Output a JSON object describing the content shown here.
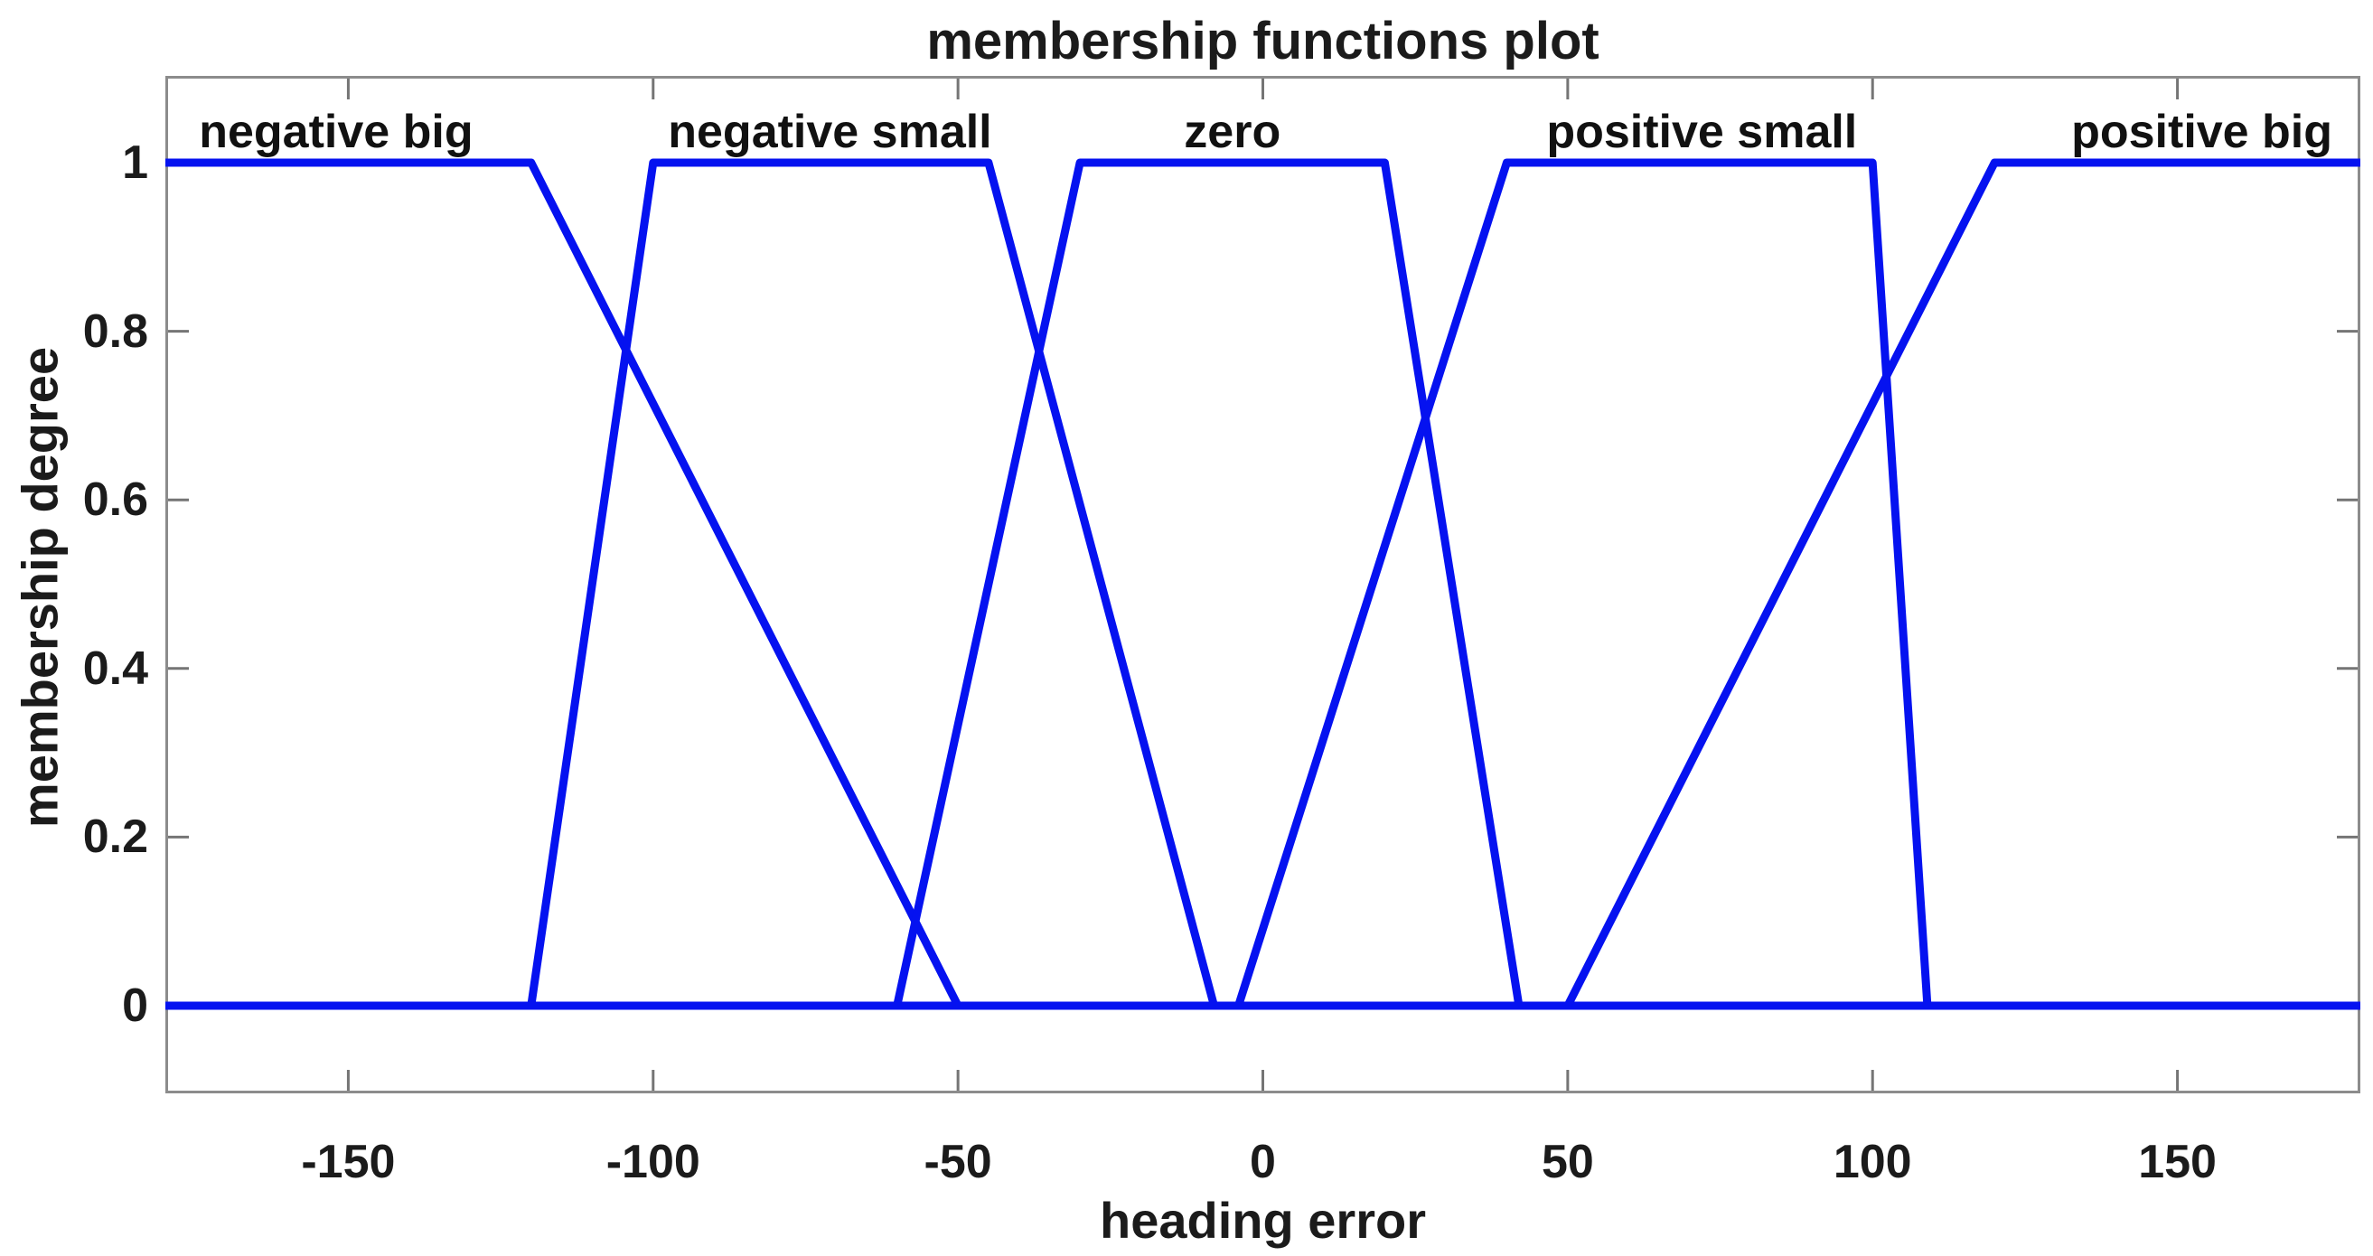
{
  "figure": {
    "title": "membership functions plot",
    "xlabel": "heading error",
    "ylabel": "membership degree"
  },
  "colors": {
    "line": "#0512f0",
    "axis_box": "#8c8c8c",
    "tick_mark": "#757575",
    "text": "#1b1b1b"
  },
  "chart_data": {
    "type": "line",
    "title": "membership functions plot",
    "xlabel": "heading error",
    "ylabel": "membership degree",
    "xlim": [
      -180,
      180
    ],
    "ylim": [
      0,
      1
    ],
    "grid": false,
    "legend": "none",
    "xticks": [
      -150,
      -100,
      -50,
      0,
      50,
      100,
      150
    ],
    "xtick_labels": [
      "-150",
      "-100",
      "-50",
      "0",
      "50",
      "100",
      "150"
    ],
    "yticks": [
      0,
      0.2,
      0.4,
      0.6,
      0.8,
      1
    ],
    "ytick_labels": [
      "0",
      "0.2",
      "0.4",
      "0.6",
      "0.8",
      "1"
    ],
    "series": [
      {
        "name": "negative big",
        "points": [
          [
            -180,
            1
          ],
          [
            -120,
            1
          ],
          [
            -50,
            0
          ],
          [
            180,
            0
          ]
        ]
      },
      {
        "name": "negative small",
        "points": [
          [
            -180,
            0
          ],
          [
            -120,
            0
          ],
          [
            -100,
            1
          ],
          [
            -45,
            1
          ],
          [
            -8,
            0
          ],
          [
            180,
            0
          ]
        ]
      },
      {
        "name": "zero",
        "points": [
          [
            -180,
            0
          ],
          [
            -60,
            0
          ],
          [
            -30,
            1
          ],
          [
            20,
            1
          ],
          [
            42,
            0
          ],
          [
            180,
            0
          ]
        ]
      },
      {
        "name": "positive small",
        "points": [
          [
            -180,
            0
          ],
          [
            -4,
            0
          ],
          [
            40,
            1
          ],
          [
            100,
            1
          ],
          [
            109,
            0
          ],
          [
            180,
            0
          ]
        ]
      },
      {
        "name": "positive big",
        "points": [
          [
            -180,
            0
          ],
          [
            50,
            0
          ],
          [
            120,
            1
          ],
          [
            180,
            1
          ]
        ]
      }
    ],
    "mf_labels": [
      {
        "text": "negative big",
        "x": -152
      },
      {
        "text": "negative small",
        "x": -71
      },
      {
        "text": "zero",
        "x": -5
      },
      {
        "text": "positive small",
        "x": 72
      },
      {
        "text": "positive big",
        "x": 154
      }
    ]
  }
}
